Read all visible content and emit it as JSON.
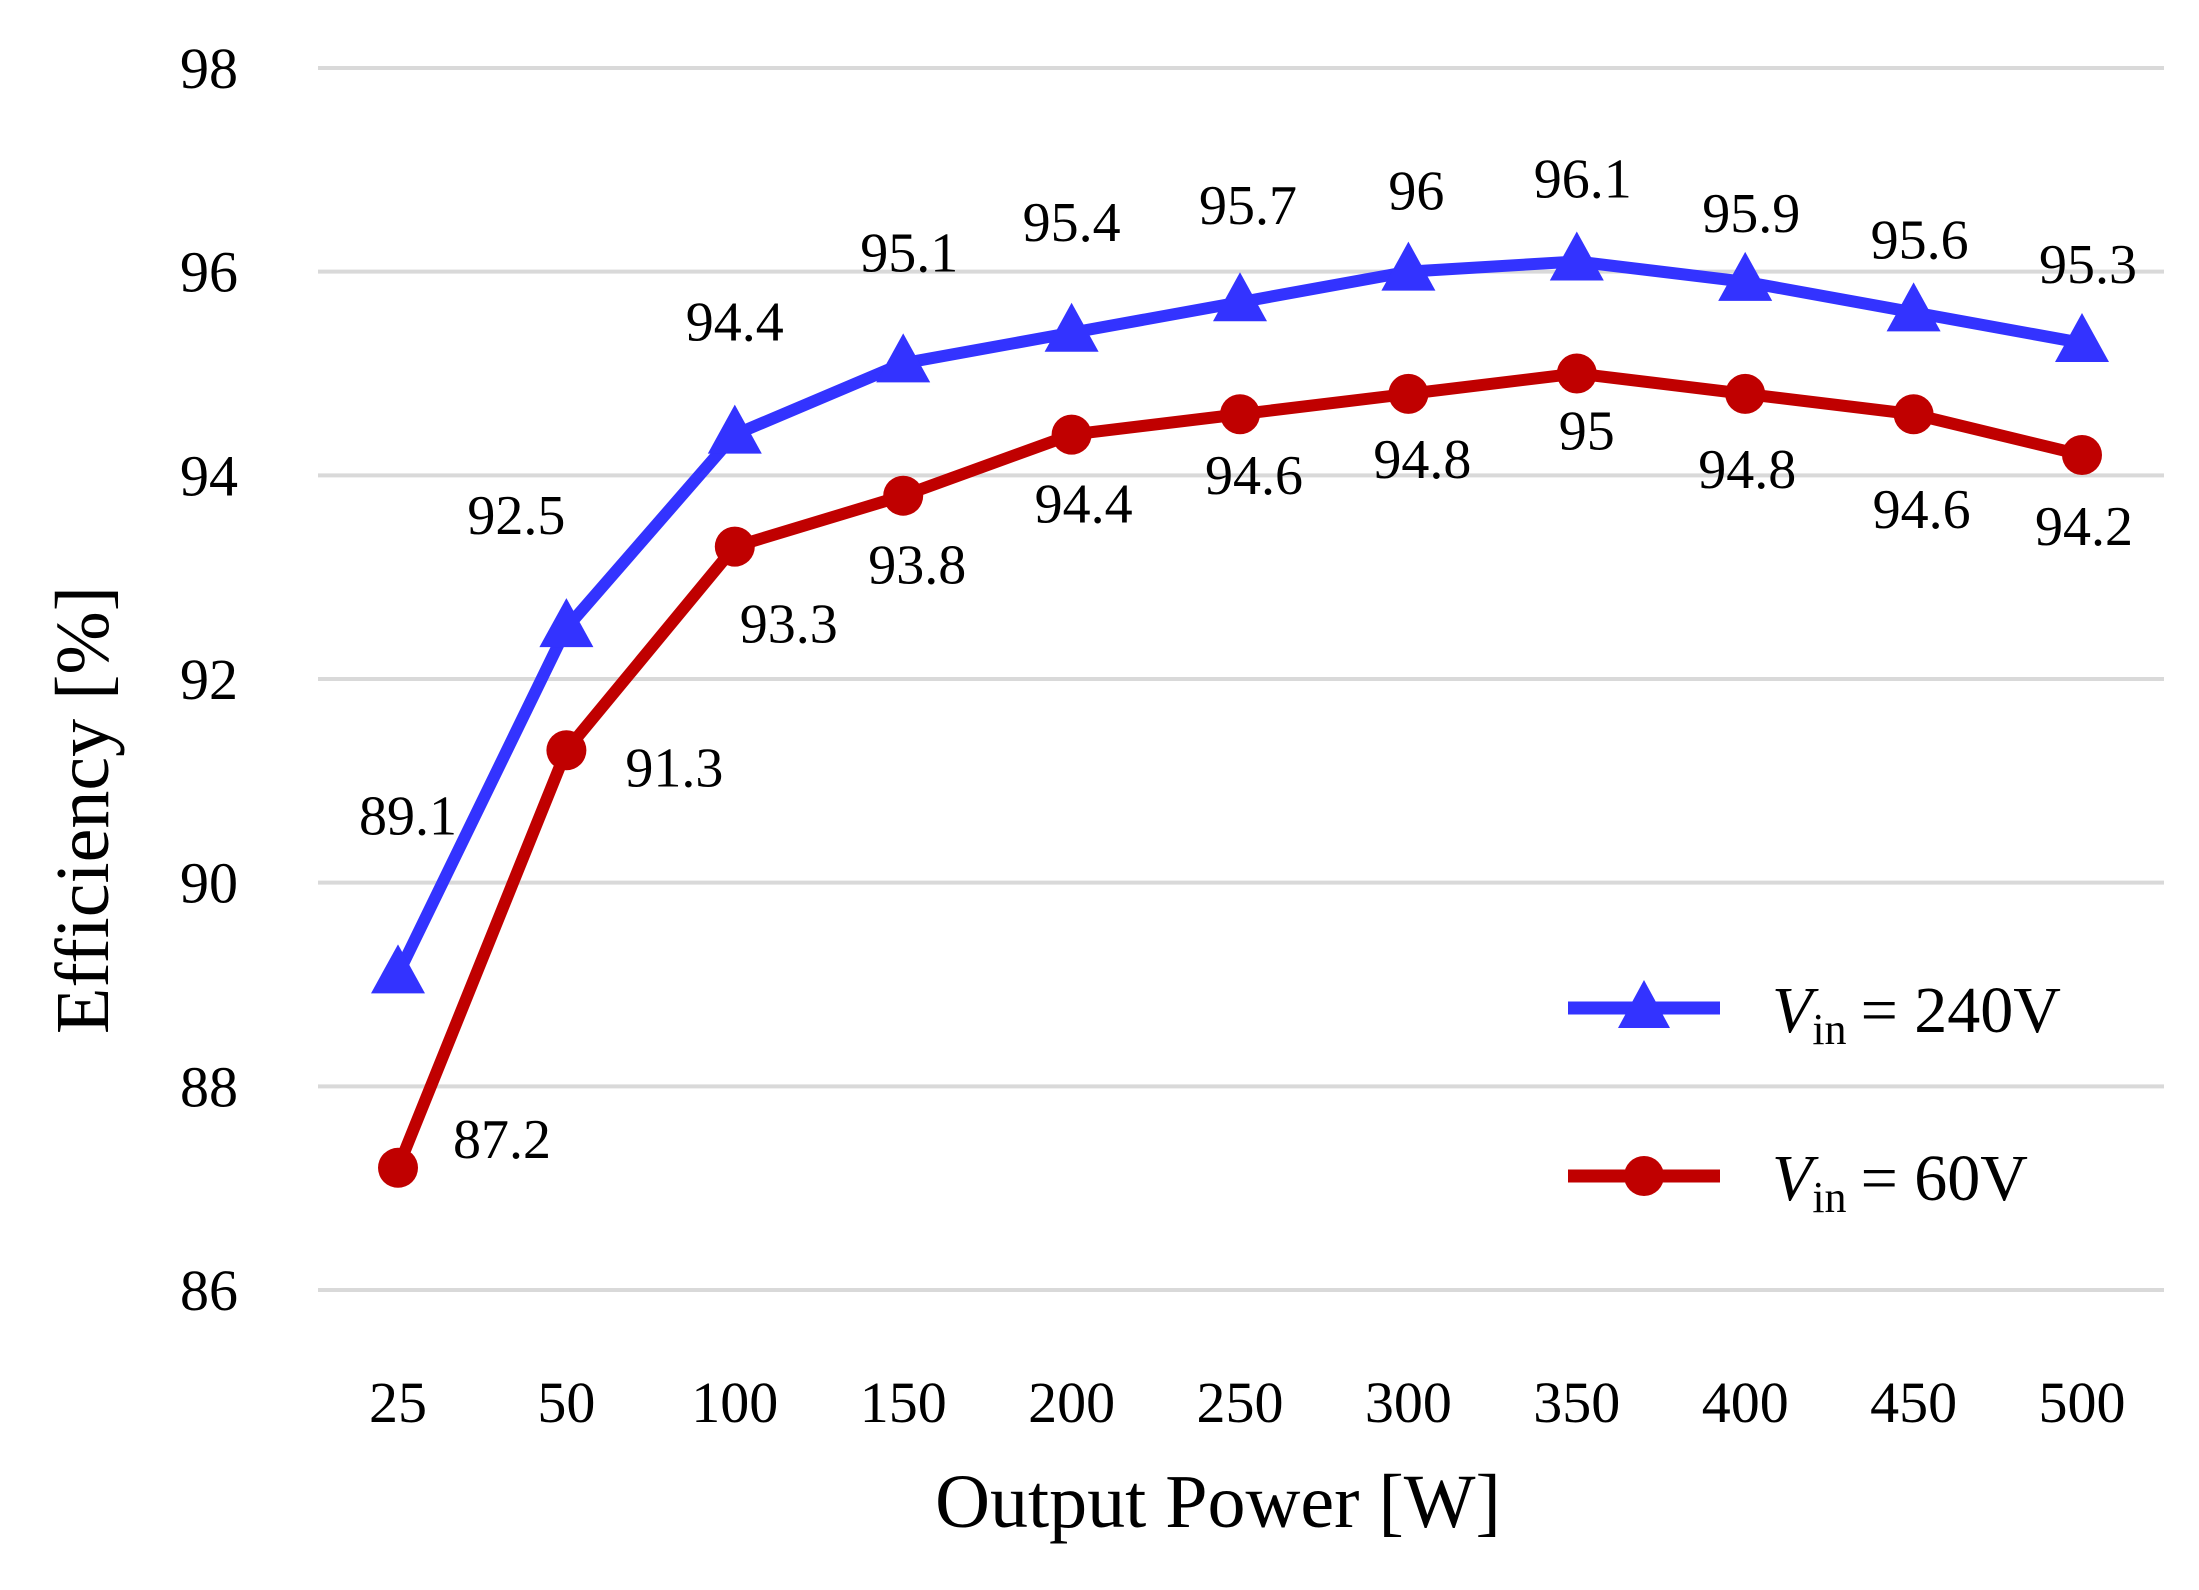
{
  "chart_data": {
    "type": "line",
    "title": "",
    "xlabel": "Output Power [W]",
    "ylabel": "Efficiency [%]",
    "categories": [
      "25",
      "50",
      "100",
      "150",
      "200",
      "250",
      "300",
      "350",
      "400",
      "450",
      "500"
    ],
    "ylim": [
      86,
      98
    ],
    "yticks": [
      "86",
      "88",
      "90",
      "92",
      "94",
      "96",
      "98"
    ],
    "grid": true,
    "legend_position": "bottom-right",
    "series": [
      {
        "name": "Vin = 240V",
        "legend_symbol": "V",
        "legend_subscript": "in",
        "legend_value": "= 240V",
        "color": "#3333ff",
        "marker": "triangle",
        "values": [
          89.1,
          92.5,
          94.4,
          95.1,
          95.4,
          95.7,
          96,
          96.1,
          95.9,
          95.6,
          95.3
        ],
        "labels": [
          "89.1",
          "92.5",
          "94.4",
          "95.1",
          "95.4",
          "95.7",
          "96",
          "96.1",
          "95.9",
          "95.6",
          "95.3"
        ]
      },
      {
        "name": "Vin = 60V",
        "legend_symbol": "V",
        "legend_subscript": "in",
        "legend_value": "= 60V",
        "color": "#c00000",
        "marker": "circle",
        "values": [
          87.2,
          91.3,
          93.3,
          93.8,
          94.4,
          94.6,
          94.8,
          95,
          94.8,
          94.6,
          94.2
        ],
        "labels": [
          "87.2",
          "91.3",
          "93.3",
          "93.8",
          "94.4",
          "94.6",
          "94.8",
          "95",
          "94.8",
          "94.6",
          "94.2"
        ]
      }
    ]
  }
}
